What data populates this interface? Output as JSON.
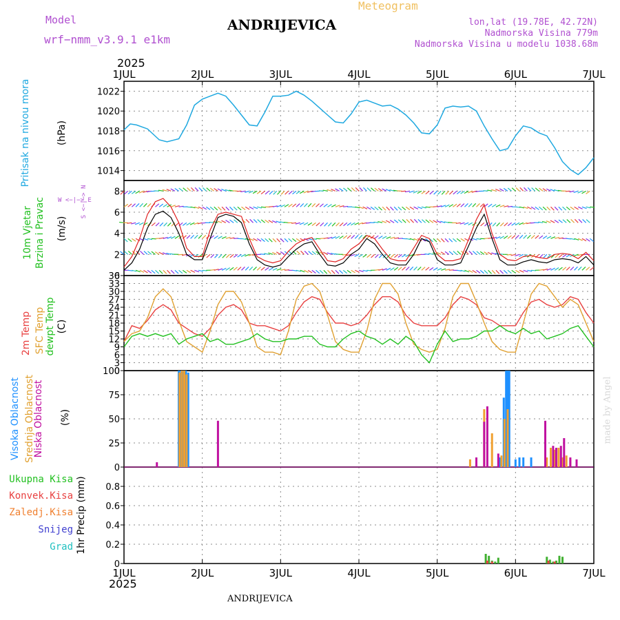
{
  "header": {
    "model_label": "Model",
    "model_name": "wrf−nmm_v3.9.1  e1km",
    "meteogram": "Meteogram",
    "station": "ANDRIJEVICA",
    "lonlat": "lon,lat (19.78E, 42.72N)",
    "elevation": "Nadmorska Visina 779m",
    "model_elevation": "Nadmorska Visina u modelu 1038.68m",
    "year_top": "2025",
    "year_bottom": "2025",
    "footer_station": "ANDRIJEVICA",
    "credit": "made by Angel"
  },
  "colors": {
    "pressure": "#1ea8e0",
    "temp2m": "#e84040",
    "sfc": "#e0a030",
    "dewpt": "#22c020",
    "high_cloud": "#1e90ff",
    "mid_cloud": "#f0a030",
    "low_cloud": "#c010a0",
    "total_precip": "#40b030",
    "conv_precip": "#e84040",
    "freezing": "#f08030",
    "snow": "#4040d0",
    "hail": "#20c0c0",
    "wind_speed": "#000000",
    "gust": "#e02020"
  },
  "axis_labels": {
    "pressure_title": "Pritisak na nivou mora",
    "pressure_unit": "(hPa)",
    "wind_title1": "10m Vjetar",
    "wind_title2": "Brzina i Pravac",
    "wind_unit": "(m/s)",
    "compass": "W <−|−> E",
    "compass_v": "S <−|−> N",
    "temp_title1": "2m Temp",
    "temp_title2": "SFC Temp",
    "temp_title3": "dewpt Temp",
    "temp_unit": "(C)",
    "cloud_title1": "Visoka Oblacnost",
    "cloud_title2": "Srednja Oblacnost",
    "cloud_title3": "Niska Oblacnost",
    "cloud_unit": "(%)",
    "precip_unit": "1hr Precip (mm)",
    "precip_legend": [
      "Ukupna Kisa",
      "Konvek.Kisa",
      "Zaledj.Kisa",
      "Snijeg",
      "Grad"
    ]
  },
  "chart_data": [
    {
      "type": "line",
      "panel": "pressure",
      "x_labels": [
        "1JUL",
        "2JUL",
        "3JUL",
        "4JUL",
        "5JUL",
        "6JUL",
        "7JUL"
      ],
      "xlim": [
        0,
        6
      ],
      "ylim": [
        1013,
        1023
      ],
      "yticks": [
        1014,
        1016,
        1018,
        1020,
        1022
      ],
      "series": [
        {
          "x": [
            0,
            0.08,
            0.16,
            0.3,
            0.45,
            0.55,
            0.7,
            0.8,
            0.9,
            1.0,
            1.1,
            1.2,
            1.3,
            1.4,
            1.5,
            1.6,
            1.7,
            1.8,
            1.9,
            2.0,
            2.1,
            2.2,
            2.3,
            2.4,
            2.5,
            2.6,
            2.7,
            2.8,
            2.9,
            3.0,
            3.1,
            3.2,
            3.3,
            3.4,
            3.5,
            3.6,
            3.7,
            3.8,
            3.9,
            4.0,
            4.1,
            4.2,
            4.3,
            4.4,
            4.5,
            4.6,
            4.7,
            4.8,
            4.9,
            5.0,
            5.1,
            5.2,
            5.3,
            5.4,
            5.5,
            5.6,
            5.7,
            5.8,
            5.9,
            6.0
          ],
          "y": [
            1018.1,
            1018.7,
            1018.6,
            1018.2,
            1017.1,
            1016.9,
            1017.2,
            1018.6,
            1020.6,
            1021.2,
            1021.5,
            1021.8,
            1021.5,
            1020.6,
            1019.6,
            1018.6,
            1018.5,
            1019.9,
            1021.5,
            1021.5,
            1021.6,
            1022.0,
            1021.6,
            1021.0,
            1020.3,
            1019.6,
            1018.9,
            1018.8,
            1019.7,
            1020.9,
            1021.1,
            1020.8,
            1020.5,
            1020.6,
            1020.2,
            1019.6,
            1018.8,
            1017.8,
            1017.7,
            1018.6,
            1020.3,
            1020.5,
            1020.4,
            1020.5,
            1020.0,
            1018.5,
            1017.2,
            1016.0,
            1016.2,
            1017.5,
            1018.5,
            1018.3,
            1017.8,
            1017.5,
            1016.3,
            1014.9,
            1014.1,
            1013.6,
            1014.3,
            1015.3
          ]
        }
      ]
    },
    {
      "type": "line",
      "panel": "wind",
      "x_labels": [
        "1JUL",
        "2JUL",
        "3JUL",
        "4JUL",
        "5JUL",
        "6JUL",
        "7JUL"
      ],
      "xlim": [
        0,
        6
      ],
      "ylim": [
        0,
        9
      ],
      "yticks": [
        0,
        2,
        4,
        6,
        8
      ],
      "series": [
        {
          "name": "speed",
          "x": [
            0,
            0.1,
            0.2,
            0.3,
            0.4,
            0.5,
            0.6,
            0.7,
            0.8,
            0.9,
            1.0,
            1.1,
            1.2,
            1.3,
            1.4,
            1.5,
            1.6,
            1.7,
            1.8,
            1.9,
            2.0,
            2.1,
            2.2,
            2.3,
            2.4,
            2.5,
            2.6,
            2.7,
            2.8,
            2.9,
            3.0,
            3.1,
            3.2,
            3.3,
            3.4,
            3.5,
            3.6,
            3.7,
            3.8,
            3.9,
            4.0,
            4.1,
            4.2,
            4.3,
            4.4,
            4.5,
            4.6,
            4.7,
            4.8,
            4.9,
            5.0,
            5.1,
            5.2,
            5.3,
            5.4,
            5.5,
            5.6,
            5.7,
            5.8,
            5.9,
            6.0
          ],
          "y": [
            0.5,
            1.2,
            2.5,
            4.5,
            5.8,
            6.1,
            5.5,
            4.0,
            2.0,
            1.5,
            1.5,
            3.5,
            5.5,
            5.8,
            5.6,
            5.0,
            3.0,
            1.5,
            1.0,
            0.8,
            1.0,
            1.8,
            2.5,
            3.0,
            3.2,
            2.0,
            1.0,
            0.9,
            1.2,
            2.0,
            2.5,
            3.5,
            3.0,
            2.0,
            1.2,
            1.0,
            1.0,
            2.0,
            3.5,
            3.2,
            1.5,
            1.0,
            1.0,
            1.2,
            2.8,
            4.5,
            5.8,
            3.5,
            1.5,
            1.0,
            1.0,
            1.3,
            1.5,
            1.3,
            1.2,
            1.5,
            1.6,
            1.5,
            1.2,
            1.8,
            1.0
          ]
        },
        {
          "name": "gust",
          "x": [
            0,
            0.1,
            0.2,
            0.3,
            0.4,
            0.5,
            0.6,
            0.7,
            0.8,
            0.9,
            1.0,
            1.1,
            1.2,
            1.3,
            1.4,
            1.5,
            1.6,
            1.7,
            1.8,
            1.9,
            2.0,
            2.1,
            2.2,
            2.3,
            2.4,
            2.5,
            2.6,
            2.7,
            2.8,
            2.9,
            3.0,
            3.1,
            3.2,
            3.3,
            3.4,
            3.5,
            3.6,
            3.7,
            3.8,
            3.9,
            4.0,
            4.1,
            4.2,
            4.3,
            4.4,
            4.5,
            4.6,
            4.7,
            4.8,
            4.9,
            5.0,
            5.1,
            5.2,
            5.3,
            5.4,
            5.5,
            5.6,
            5.7,
            5.8,
            5.9,
            6.0
          ],
          "y": [
            0.8,
            1.8,
            3.5,
            5.8,
            7.0,
            7.3,
            6.5,
            5.0,
            2.6,
            1.8,
            1.8,
            4.3,
            5.8,
            6.0,
            5.8,
            5.6,
            3.5,
            1.8,
            1.4,
            1.2,
            1.4,
            2.3,
            3.0,
            3.4,
            3.6,
            2.5,
            1.4,
            1.3,
            1.6,
            2.5,
            3.0,
            3.8,
            3.5,
            2.5,
            1.6,
            1.4,
            1.4,
            2.6,
            3.8,
            3.5,
            2.0,
            1.4,
            1.4,
            1.6,
            3.4,
            5.3,
            6.7,
            4.0,
            2.0,
            1.5,
            1.4,
            1.8,
            1.9,
            1.7,
            1.6,
            2.0,
            2.1,
            2.0,
            1.6,
            2.2,
            1.4
          ]
        }
      ]
    },
    {
      "type": "line",
      "panel": "temperature",
      "x_labels": [
        "1JUL",
        "2JUL",
        "3JUL",
        "4JUL",
        "5JUL",
        "6JUL",
        "7JUL"
      ],
      "xlim": [
        0,
        6
      ],
      "ylim": [
        0,
        36
      ],
      "yticks": [
        0,
        3,
        6,
        9,
        12,
        15,
        18,
        21,
        24,
        27,
        30,
        33,
        36
      ],
      "series": [
        {
          "name": "2m",
          "x": [
            0,
            0.1,
            0.2,
            0.3,
            0.4,
            0.5,
            0.6,
            0.7,
            0.8,
            0.9,
            1.0,
            1.1,
            1.2,
            1.3,
            1.4,
            1.5,
            1.6,
            1.7,
            1.8,
            1.9,
            2.0,
            2.1,
            2.2,
            2.3,
            2.4,
            2.5,
            2.6,
            2.7,
            2.8,
            2.9,
            3.0,
            3.1,
            3.2,
            3.3,
            3.4,
            3.5,
            3.6,
            3.7,
            3.8,
            3.9,
            4.0,
            4.1,
            4.2,
            4.3,
            4.4,
            4.5,
            4.6,
            4.7,
            4.8,
            4.9,
            5.0,
            5.1,
            5.2,
            5.3,
            5.4,
            5.5,
            5.6,
            5.7,
            5.8,
            5.9,
            6.0
          ],
          "y": [
            11,
            17,
            16,
            19,
            23,
            25,
            23,
            18,
            16,
            14,
            13,
            16,
            21,
            24,
            25,
            23,
            18,
            17,
            17,
            16,
            15,
            17,
            22,
            26,
            28,
            27,
            22,
            18,
            18,
            17,
            18,
            21,
            25,
            28,
            28,
            26,
            21,
            18,
            17,
            17,
            17,
            20,
            25,
            28,
            27,
            25,
            20,
            19,
            17,
            17,
            17,
            22,
            26,
            27,
            25,
            24,
            25,
            28,
            27,
            22,
            18
          ]
        },
        {
          "name": "sfc",
          "x": [
            0,
            0.1,
            0.2,
            0.3,
            0.4,
            0.5,
            0.6,
            0.7,
            0.8,
            0.9,
            1.0,
            1.1,
            1.2,
            1.3,
            1.4,
            1.5,
            1.6,
            1.7,
            1.8,
            1.9,
            2.0,
            2.1,
            2.2,
            2.3,
            2.4,
            2.5,
            2.6,
            2.7,
            2.8,
            2.9,
            3.0,
            3.1,
            3.2,
            3.3,
            3.4,
            3.5,
            3.6,
            3.7,
            3.8,
            3.9,
            4.0,
            4.1,
            4.2,
            4.3,
            4.4,
            4.5,
            4.6,
            4.7,
            4.8,
            4.9,
            5.0,
            5.1,
            5.2,
            5.3,
            5.4,
            5.5,
            5.6,
            5.7,
            5.8,
            5.9,
            6.0
          ],
          "y": [
            11,
            14,
            15,
            20,
            28,
            31,
            28,
            19,
            11,
            9,
            7,
            15,
            25,
            30,
            30,
            26,
            18,
            9,
            7,
            7,
            6,
            15,
            27,
            32,
            33,
            30,
            21,
            11,
            8,
            7,
            7,
            15,
            27,
            33,
            33,
            29,
            18,
            10,
            8,
            7,
            8,
            16,
            28,
            33,
            33,
            26,
            18,
            11,
            8,
            7,
            7,
            18,
            29,
            33,
            32,
            28,
            24,
            27,
            25,
            18,
            11
          ]
        },
        {
          "name": "dewpt",
          "x": [
            0,
            0.1,
            0.2,
            0.3,
            0.4,
            0.5,
            0.6,
            0.7,
            0.8,
            0.9,
            1.0,
            1.1,
            1.2,
            1.3,
            1.4,
            1.5,
            1.6,
            1.7,
            1.8,
            1.9,
            2.0,
            2.1,
            2.2,
            2.3,
            2.4,
            2.5,
            2.6,
            2.7,
            2.8,
            2.9,
            3.0,
            3.1,
            3.2,
            3.3,
            3.4,
            3.5,
            3.6,
            3.7,
            3.8,
            3.9,
            4.0,
            4.1,
            4.2,
            4.3,
            4.4,
            4.5,
            4.6,
            4.7,
            4.8,
            4.9,
            5.0,
            5.1,
            5.2,
            5.3,
            5.4,
            5.5,
            5.6,
            5.7,
            5.8,
            5.9,
            6.0
          ],
          "y": [
            9,
            13,
            14,
            13,
            14,
            13,
            14,
            10,
            12,
            13,
            14,
            11,
            12,
            10,
            10,
            11,
            12,
            14,
            12,
            11,
            11,
            12,
            12,
            13,
            13,
            10,
            9,
            9,
            12,
            14,
            15,
            13,
            12,
            10,
            12,
            10,
            13,
            11,
            6,
            3,
            10,
            15,
            11,
            12,
            12,
            13,
            15,
            15,
            17,
            15,
            14,
            16,
            14,
            15,
            12,
            13,
            14,
            16,
            17,
            13,
            9
          ]
        }
      ]
    },
    {
      "type": "bar",
      "panel": "clouds",
      "x_labels": [
        "1JUL",
        "2JUL",
        "3JUL",
        "4JUL",
        "5JUL",
        "6JUL",
        "7JUL"
      ],
      "xlim": [
        0,
        6
      ],
      "ylim": [
        0,
        100
      ],
      "yticks": [
        0,
        25,
        50,
        75,
        100
      ],
      "series": [
        {
          "name": "high",
          "x": [
            0.7,
            0.73,
            0.76,
            0.79,
            0.82,
            4.8,
            4.85,
            4.88,
            4.9,
            4.92,
            5.0,
            5.05,
            5.1,
            5.2
          ],
          "values": [
            100,
            100,
            100,
            100,
            98,
            10,
            72,
            100,
            100,
            100,
            8,
            10,
            10,
            10
          ]
        },
        {
          "name": "mid",
          "x": [
            0.71,
            0.74,
            0.77,
            0.8,
            4.42,
            4.6,
            4.7,
            4.82,
            4.86,
            4.9,
            5.4,
            5.45,
            5.5,
            5.55,
            5.6,
            5.65,
            5.7
          ],
          "values": [
            98,
            100,
            100,
            96,
            8,
            60,
            35,
            12,
            50,
            60,
            10,
            20,
            18,
            20,
            10,
            12,
            8
          ]
        },
        {
          "name": "low",
          "x": [
            0.42,
            1.2,
            4.5,
            4.6,
            4.64,
            4.78,
            5.38,
            5.48,
            5.52,
            5.58,
            5.62,
            5.7,
            5.78
          ],
          "values": [
            5,
            48,
            10,
            47,
            63,
            14,
            48,
            22,
            20,
            22,
            30,
            10,
            8
          ]
        }
      ]
    },
    {
      "type": "bar",
      "panel": "precip",
      "x_labels": [
        "1JUL",
        "2JUL",
        "3JUL",
        "4JUL",
        "5JUL",
        "6JUL",
        "7JUL"
      ],
      "xlim": [
        0,
        6
      ],
      "ylim": [
        0,
        1
      ],
      "yticks": [
        0,
        0.2,
        0.4,
        0.6,
        0.8
      ],
      "series": [
        {
          "name": "Ukupna Kisa",
          "x": [
            4.62,
            4.66,
            4.7,
            4.74,
            4.78,
            5.4,
            5.44,
            5.48,
            5.52,
            5.56,
            5.6
          ],
          "values": [
            0.1,
            0.08,
            0.03,
            0.02,
            0.06,
            0.07,
            0.04,
            0.02,
            0.03,
            0.08,
            0.07
          ]
        },
        {
          "name": "Konvek.Kisa",
          "x": [
            4.64,
            4.7,
            5.42,
            5.5
          ],
          "values": [
            0.03,
            0.02,
            0.03,
            0.02
          ]
        }
      ]
    }
  ]
}
